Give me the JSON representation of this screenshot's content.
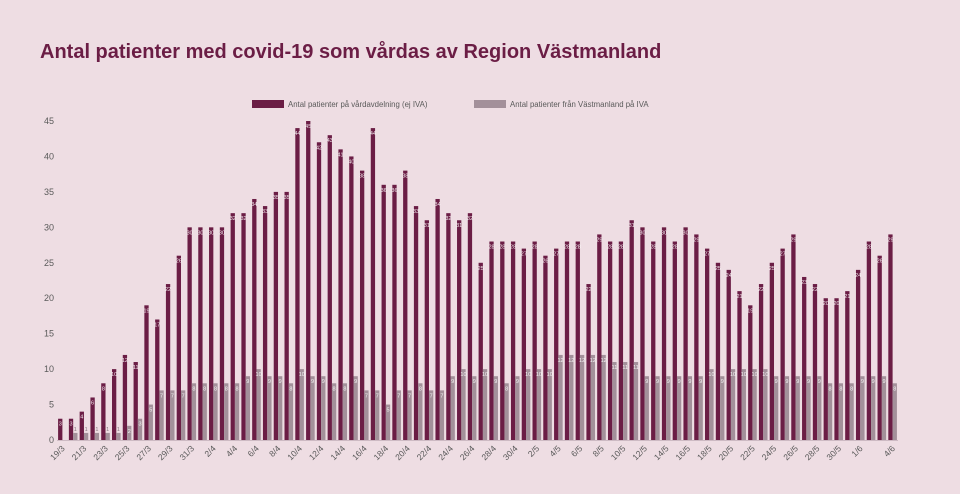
{
  "page": {
    "background": "#eedde3"
  },
  "colors": {
    "title": "#6b1d45",
    "axis_text": "#5a5a5a"
  },
  "chart_data": {
    "type": "bar",
    "title": "Antal patienter med covid-19 som vårdas av Region Västmanland",
    "xlabel": "",
    "ylabel": "",
    "ylim": [
      0,
      45
    ],
    "yticks": [
      0,
      5,
      10,
      15,
      20,
      25,
      30,
      35,
      40,
      45
    ],
    "grid": false,
    "legend_position": "top-center",
    "data_labels": true,
    "categories": [
      "19/3",
      "",
      "21/3",
      "",
      "23/3",
      "",
      "25/3",
      "",
      "27/3",
      "",
      "29/3",
      "",
      "31/3",
      "",
      "2/4",
      "",
      "4/4",
      "",
      "6/4",
      "",
      "8/4",
      "",
      "10/4",
      "",
      "12/4",
      "",
      "14/4",
      "",
      "16/4",
      "",
      "18/4",
      "",
      "20/4",
      "",
      "22/4",
      "",
      "24/4",
      "",
      "26/4",
      "",
      "28/4",
      "",
      "30/4",
      "",
      "2/5",
      "",
      "4/5",
      "",
      "6/5",
      "",
      "8/5",
      "",
      "10/5",
      "",
      "12/5",
      "",
      "14/5",
      "",
      "16/5",
      "",
      "18/5",
      "",
      "20/5",
      "",
      "22/5",
      "",
      "24/5",
      "",
      "26/5",
      "",
      "28/5",
      "",
      "30/5",
      "",
      "1/6",
      "",
      "",
      "4/6"
    ],
    "series": [
      {
        "name": "Antal patienter på vårdavdelning (ej IVA)",
        "color": "#6b1d45",
        "values": [
          3,
          3,
          4,
          6,
          8,
          10,
          12,
          11,
          19,
          17,
          22,
          26,
          30,
          30,
          30,
          30,
          32,
          32,
          34,
          33,
          35,
          35,
          44,
          45,
          42,
          43,
          41,
          40,
          38,
          44,
          36,
          36,
          38,
          33,
          31,
          34,
          32,
          31,
          32,
          25,
          28,
          28,
          28,
          27,
          28,
          26,
          27,
          28,
          28,
          22,
          29,
          28,
          28,
          31,
          30,
          28,
          30,
          28,
          30,
          29,
          27,
          25,
          24,
          21,
          19,
          22,
          25,
          27,
          29,
          23,
          22,
          20,
          20,
          21,
          24,
          28,
          26,
          29
        ]
      },
      {
        "name": "Antal patienter från Västmanland på IVA",
        "color": "#a3909a",
        "values": [
          0,
          1,
          1,
          1,
          1,
          1,
          2,
          3,
          5,
          7,
          7,
          7,
          8,
          8,
          8,
          8,
          8,
          9,
          10,
          9,
          9,
          8,
          10,
          9,
          9,
          8,
          8,
          9,
          7,
          7,
          5,
          7,
          7,
          8,
          7,
          7,
          9,
          10,
          9,
          10,
          9,
          8,
          9,
          10,
          10,
          10,
          12,
          12,
          12,
          12,
          12,
          11,
          11,
          11,
          9,
          9,
          9,
          9,
          9,
          9,
          10,
          9,
          10,
          10,
          10,
          10,
          9,
          9,
          9,
          9,
          9,
          8,
          8,
          8,
          9,
          9,
          9,
          8
        ]
      }
    ]
  }
}
